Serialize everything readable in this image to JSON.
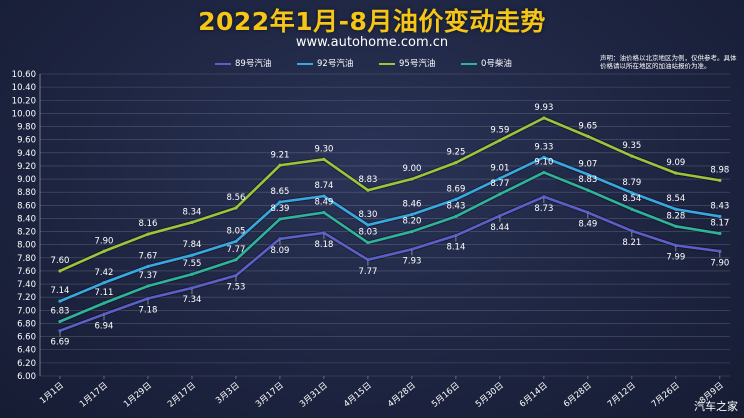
{
  "header": {
    "title": "2022年1月-8月油价变动走势",
    "site": "www.autohome.com.cn",
    "disclaimer": "声明：油价格以北京地区为例，仅供参考。具体价格请以所在地区的加油站报价为准。",
    "watermark": "汽车之家"
  },
  "colors": {
    "s89": "#5b5fc7",
    "s92": "#3aa8e0",
    "s95": "#9cc43c",
    "s0": "#2fb39a"
  },
  "chart_data": {
    "type": "line",
    "categories": [
      "1月1日",
      "1月17日",
      "1月29日",
      "2月17日",
      "3月3日",
      "3月17日",
      "3月31日",
      "4月15日",
      "4月28日",
      "5月16日",
      "5月30日",
      "6月14日",
      "6月28日",
      "7月12日",
      "7月26日",
      "8月9日"
    ],
    "ylim": [
      6.0,
      10.6
    ],
    "yticks": [
      "6.00",
      "6.20",
      "6.40",
      "6.60",
      "6.80",
      "7.00",
      "7.20",
      "7.40",
      "7.60",
      "7.80",
      "8.00",
      "8.20",
      "8.40",
      "8.60",
      "8.80",
      "9.00",
      "9.20",
      "9.40",
      "9.60",
      "9.80",
      "10.00",
      "10.20",
      "10.40",
      "10.60"
    ],
    "grid": true,
    "legend_position": "top",
    "series": [
      {
        "name": "89号汽油",
        "key": "s89",
        "values": [
          6.69,
          6.94,
          7.18,
          7.34,
          7.53,
          8.09,
          8.18,
          7.77,
          7.93,
          8.14,
          8.44,
          8.73,
          8.49,
          8.21,
          7.99,
          7.9
        ]
      },
      {
        "name": "92号汽油",
        "key": "s92",
        "values": [
          7.14,
          7.42,
          7.67,
          7.84,
          8.05,
          8.65,
          8.74,
          8.3,
          8.46,
          8.69,
          9.01,
          9.33,
          9.07,
          8.79,
          8.54,
          8.43
        ]
      },
      {
        "name": "95号汽油",
        "key": "s95",
        "values": [
          7.6,
          7.9,
          8.16,
          8.34,
          8.56,
          9.21,
          9.3,
          8.83,
          9.0,
          9.25,
          9.59,
          9.93,
          9.65,
          9.35,
          9.09,
          8.98
        ]
      },
      {
        "name": "0号柴油",
        "key": "s0",
        "values": [
          6.83,
          7.11,
          7.37,
          7.55,
          7.77,
          8.39,
          8.49,
          8.03,
          8.2,
          8.43,
          8.77,
          9.1,
          8.83,
          8.54,
          8.28,
          8.17
        ]
      }
    ]
  }
}
